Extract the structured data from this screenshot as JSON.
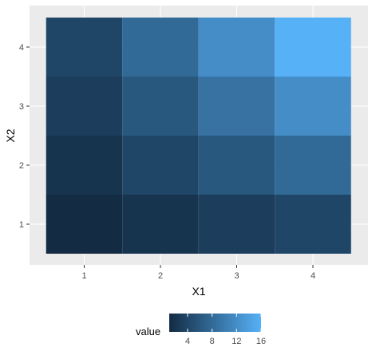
{
  "chart_data": {
    "type": "heatmap",
    "xlabel": "X1",
    "ylabel": "X2",
    "x": [
      1,
      2,
      3,
      4
    ],
    "y": [
      1,
      2,
      3,
      4
    ],
    "x_tick_labels": [
      "1",
      "2",
      "3",
      "4"
    ],
    "y_tick_labels": [
      "1",
      "2",
      "3",
      "4"
    ],
    "cells": [
      {
        "x": 1,
        "y": 1,
        "value": 1
      },
      {
        "x": 2,
        "y": 1,
        "value": 2
      },
      {
        "x": 3,
        "y": 1,
        "value": 3
      },
      {
        "x": 4,
        "y": 1,
        "value": 4
      },
      {
        "x": 1,
        "y": 2,
        "value": 2
      },
      {
        "x": 2,
        "y": 2,
        "value": 4
      },
      {
        "x": 3,
        "y": 2,
        "value": 6
      },
      {
        "x": 4,
        "y": 2,
        "value": 8
      },
      {
        "x": 1,
        "y": 3,
        "value": 3
      },
      {
        "x": 2,
        "y": 3,
        "value": 6
      },
      {
        "x": 3,
        "y": 3,
        "value": 9
      },
      {
        "x": 4,
        "y": 3,
        "value": 12
      },
      {
        "x": 1,
        "y": 4,
        "value": 4
      },
      {
        "x": 2,
        "y": 4,
        "value": 8
      },
      {
        "x": 3,
        "y": 4,
        "value": 12
      },
      {
        "x": 4,
        "y": 4,
        "value": 16
      }
    ],
    "value_range": [
      1,
      16
    ],
    "color_low": "#132b43",
    "color_high": "#56b1f7",
    "panel_background": "#ebebeb",
    "grid": true,
    "legend": {
      "title": "value",
      "position": "bottom",
      "breaks": [
        4,
        8,
        12,
        16
      ],
      "break_labels": [
        "4",
        "8",
        "12",
        "16"
      ]
    }
  }
}
